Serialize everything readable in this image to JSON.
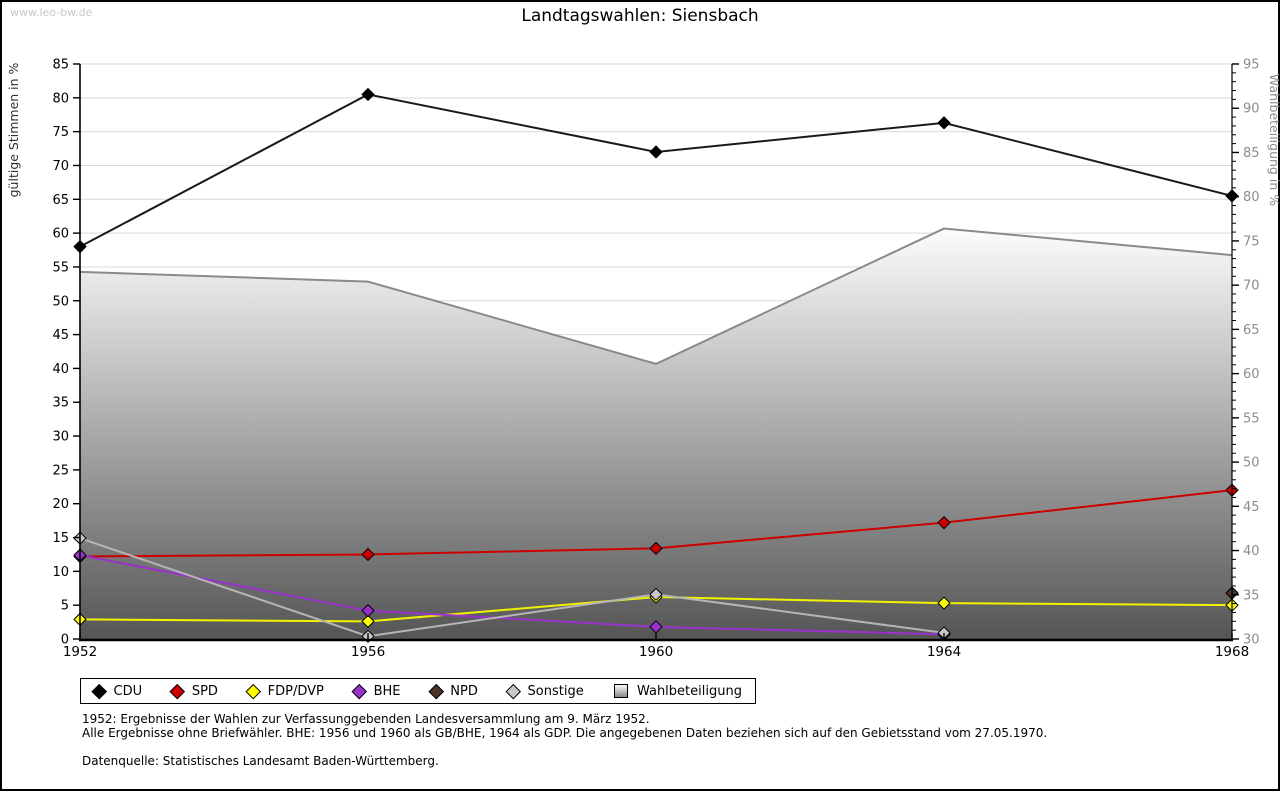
{
  "watermark": "www.leo-bw.de",
  "chart_data": {
    "type": "line",
    "title": "Landtagswahlen: Siensbach",
    "categories": [
      "1952",
      "1956",
      "1960",
      "1964",
      "1968"
    ],
    "left_axis": {
      "label": "gültige Stimmen in %",
      "min": 0,
      "max": 85,
      "step": 5
    },
    "right_axis": {
      "label": "Wahlbeteiligung in %",
      "min": 30,
      "max": 95,
      "step": 5,
      "minor_step": 1
    },
    "grid": "horizontal",
    "legend_position": "bottom",
    "colors": {
      "grid": "#d9d9d9",
      "axis": "#000000",
      "right_axis_text": "#8c8c8c",
      "left_axis_text": "#000000"
    },
    "series": [
      {
        "name": "CDU",
        "axis": "left",
        "color": "#000000",
        "line_color": "#1a1a1a",
        "values": [
          58.0,
          80.5,
          72.0,
          76.3,
          65.5
        ]
      },
      {
        "name": "SPD",
        "axis": "left",
        "color": "#cc0000",
        "line_color": "#cc0000",
        "values": [
          12.2,
          12.5,
          13.4,
          17.2,
          22.0
        ]
      },
      {
        "name": "FDP/DVP",
        "axis": "left",
        "color": "#ffff00",
        "line_color": "#f2f200",
        "values": [
          2.9,
          2.6,
          6.2,
          5.3,
          5.0
        ]
      },
      {
        "name": "BHE",
        "axis": "left",
        "color": "#9932cc",
        "line_color": "#9932cc",
        "values": [
          12.4,
          4.2,
          1.8,
          0.7,
          null
        ]
      },
      {
        "name": "NPD",
        "axis": "left",
        "color": "#4a3426",
        "line_color": "#4a3426",
        "values": [
          null,
          null,
          null,
          null,
          6.8
        ]
      },
      {
        "name": "Sonstige",
        "axis": "left",
        "color": "#c8c8c8",
        "line_color": "#b5b5b5",
        "values": [
          14.9,
          0.4,
          6.6,
          0.9,
          null
        ]
      },
      {
        "name": "Wahlbeteiligung",
        "axis": "right",
        "type": "area",
        "line_color": "#8a8a8a",
        "fill_top": "#fcfcfc",
        "fill_bottom": "#555555",
        "values": [
          71.5,
          70.4,
          61.1,
          76.4,
          73.4
        ]
      }
    ]
  },
  "footnotes": {
    "line1": "1952: Ergebnisse der Wahlen zur Verfassunggebenden Landesversammlung am 9. März 1952.",
    "line2": "Alle Ergebnisse ohne Briefwähler. BHE: 1956 und 1960 als GB/BHE, 1964 als GDP. Die angegebenen Daten beziehen sich auf den Gebietsstand vom 27.05.1970.",
    "source": "Datenquelle: Statistisches Landesamt Baden-Württemberg."
  }
}
